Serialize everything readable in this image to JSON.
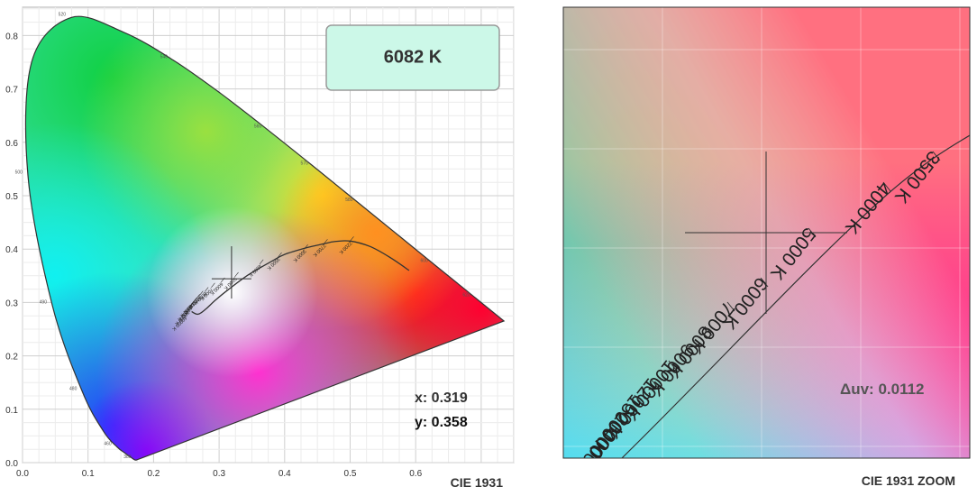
{
  "chart_data": [
    {
      "type": "scatter",
      "title": "CIE 1931",
      "xlabel": "",
      "ylabel": "",
      "xlim": [
        0,
        0.75
      ],
      "ylim": [
        0,
        0.85
      ],
      "x_ticks": [
        "0.0",
        "0.1",
        "0.2",
        "0.3",
        "0.4",
        "0.5",
        "0.6"
      ],
      "y_ticks": [
        "0.0",
        "0.1",
        "0.2",
        "0.3",
        "0.4",
        "0.5",
        "0.6",
        "0.7",
        "0.8"
      ],
      "grid": true,
      "spectral_locus": [
        [
          0.1741,
          0.005
        ],
        [
          0.1733,
          0.0048
        ],
        [
          0.1726,
          0.0048
        ],
        [
          0.1714,
          0.0051
        ],
        [
          0.1689,
          0.0069
        ],
        [
          0.1644,
          0.0109
        ],
        [
          0.1566,
          0.0177
        ],
        [
          0.144,
          0.0297
        ],
        [
          0.1241,
          0.0578
        ],
        [
          0.0913,
          0.1327
        ],
        [
          0.0454,
          0.295
        ],
        [
          0.0082,
          0.5384
        ],
        [
          0.0139,
          0.7502
        ],
        [
          0.0743,
          0.8338
        ],
        [
          0.1547,
          0.8059
        ],
        [
          0.2296,
          0.7543
        ],
        [
          0.3016,
          0.6923
        ],
        [
          0.3731,
          0.6245
        ],
        [
          0.4441,
          0.5547
        ],
        [
          0.5125,
          0.4866
        ],
        [
          0.5752,
          0.4242
        ],
        [
          0.627,
          0.3725
        ],
        [
          0.6658,
          0.334
        ],
        [
          0.6915,
          0.3083
        ],
        [
          0.7347,
          0.2653
        ]
      ],
      "wavelength_labels": [
        {
          "text": "380",
          "x": 0.1741,
          "y": 0.005
        },
        {
          "text": "460",
          "x": 0.144,
          "y": 0.0297
        },
        {
          "text": "480",
          "x": 0.0913,
          "y": 0.1327
        },
        {
          "text": "490",
          "x": 0.0454,
          "y": 0.295
        },
        {
          "text": "500",
          "x": 0.0082,
          "y": 0.5384
        },
        {
          "text": "520",
          "x": 0.0743,
          "y": 0.8338
        },
        {
          "text": "540",
          "x": 0.2296,
          "y": 0.7543
        },
        {
          "text": "560",
          "x": 0.3731,
          "y": 0.6245
        },
        {
          "text": "570",
          "x": 0.4441,
          "y": 0.5547
        },
        {
          "text": "580",
          "x": 0.5125,
          "y": 0.4866
        },
        {
          "text": "600",
          "x": 0.627,
          "y": 0.3725
        },
        {
          "text": "620",
          "x": 0.6915,
          "y": 0.3083
        }
      ],
      "planckian_locus": [
        [
          0.258,
          0.283
        ],
        [
          0.268,
          0.278
        ],
        [
          0.28,
          0.288
        ],
        [
          0.295,
          0.305
        ],
        [
          0.314,
          0.324
        ],
        [
          0.345,
          0.352
        ],
        [
          0.38,
          0.377
        ],
        [
          0.4,
          0.39
        ],
        [
          0.435,
          0.403
        ],
        [
          0.46,
          0.41
        ],
        [
          0.476,
          0.414
        ],
        [
          0.5,
          0.415
        ],
        [
          0.53,
          0.405
        ],
        [
          0.56,
          0.385
        ],
        [
          0.59,
          0.36
        ]
      ],
      "cct_labels": [
        {
          "text": "40000 K",
          "x": 0.248,
          "y": 0.275
        },
        {
          "text": "20000 K",
          "x": 0.252,
          "y": 0.285
        },
        {
          "text": "15000 K",
          "x": 0.256,
          "y": 0.293
        },
        {
          "text": "12000 K",
          "x": 0.26,
          "y": 0.3
        },
        {
          "text": "10000 K",
          "x": 0.265,
          "y": 0.307
        },
        {
          "text": "9000 K",
          "x": 0.27,
          "y": 0.313
        },
        {
          "text": "8000 K",
          "x": 0.278,
          "y": 0.32
        },
        {
          "text": "7000 K",
          "x": 0.288,
          "y": 0.328
        },
        {
          "text": "6000 K",
          "x": 0.303,
          "y": 0.338
        },
        {
          "text": "5000 K",
          "x": 0.324,
          "y": 0.348
        },
        {
          "text": "4000 K",
          "x": 0.362,
          "y": 0.372
        },
        {
          "text": "3500 K",
          "x": 0.39,
          "y": 0.385
        },
        {
          "text": "3000 K",
          "x": 0.43,
          "y": 0.4
        },
        {
          "text": "2700 K",
          "x": 0.46,
          "y": 0.41
        },
        {
          "text": "2200 K",
          "x": 0.5,
          "y": 0.415
        }
      ],
      "measurement": {
        "x": 0.319,
        "y": 0.358
      },
      "cct_readout": "6082 K",
      "x_readout": "x: 0.319",
      "y_readout": "y: 0.358"
    },
    {
      "type": "scatter",
      "title": "CIE 1931 ZOOM",
      "xlabel": "",
      "ylabel": "",
      "grid": true,
      "cct_labels": [
        "3500 K",
        "4000 K",
        "5000 K",
        "6000 K",
        "7000 K",
        "8000 K",
        "9000 K",
        "10000 K",
        "12000 K",
        "15000 K",
        "20000 K",
        "40000 K"
      ],
      "duv_readout": "Δuv: 0.0112"
    }
  ],
  "colors": {
    "readout_bg": "#ccf8e8",
    "readout_border": "#9a9a9a",
    "text": "#333333"
  }
}
